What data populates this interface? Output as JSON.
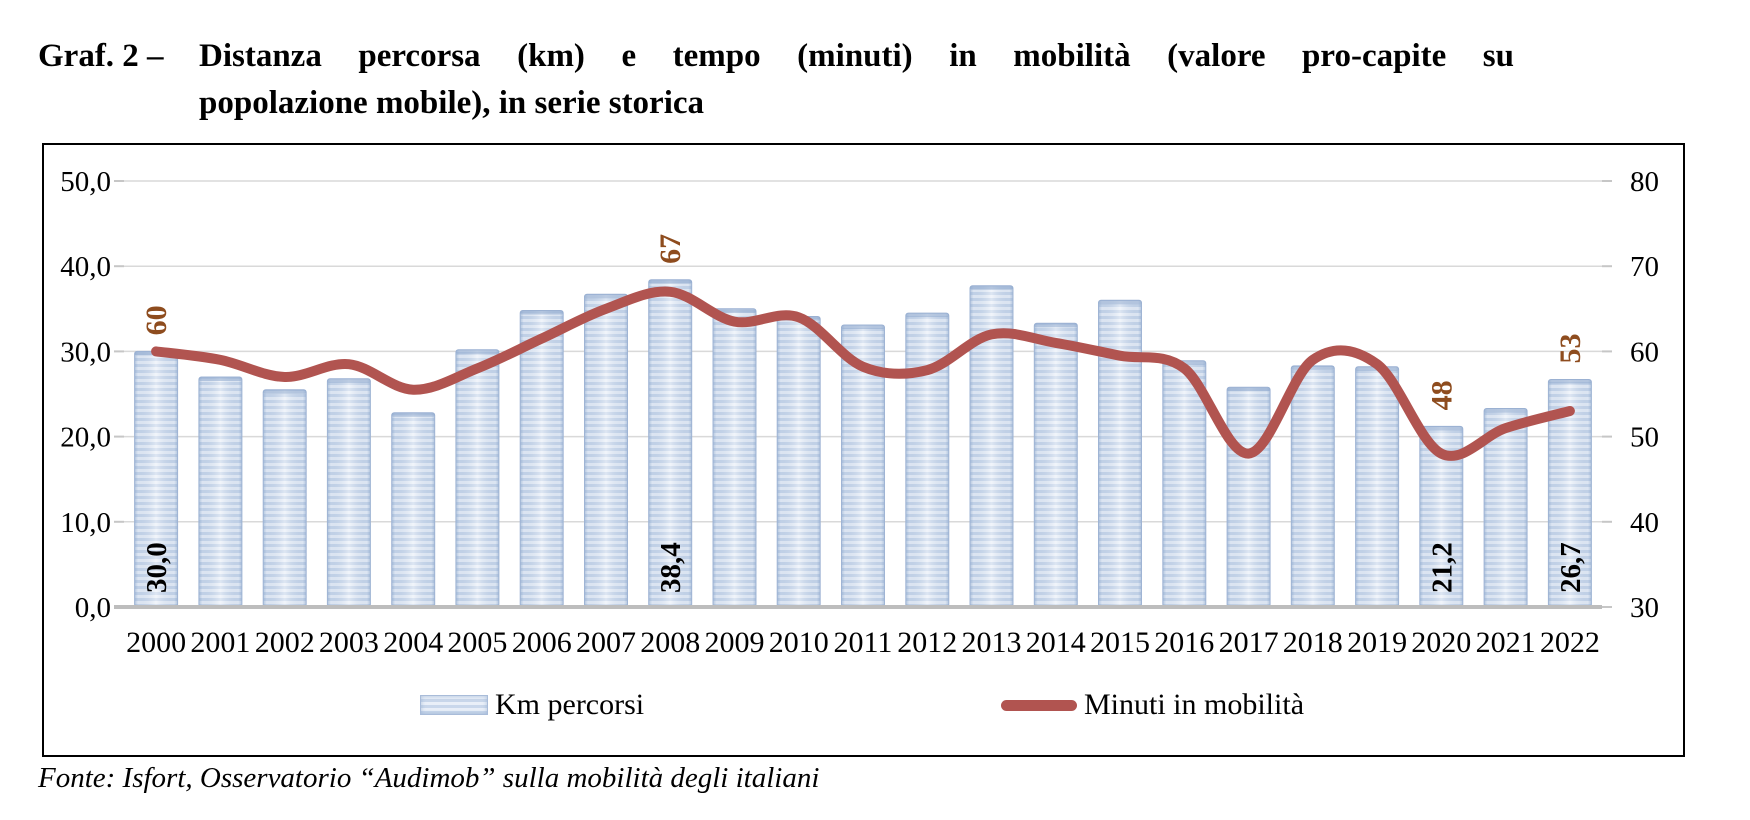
{
  "title": {
    "prefix": "Graf. 2 –",
    "line1": "Distanza percorsa (km) e tempo (minuti) in mobilità (valore pro-capite su",
    "line2": "popolazione mobile), in serie storica",
    "full": "Graf. 2 – Distanza percorsa (km) e tempo (minuti) in mobilità (valore pro-capite su popolazione mobile), in serie storica"
  },
  "source_note": "Fonte: Isfort, Osservatorio “Audimob” sulla mobilità degli italiani",
  "legend": {
    "km": "Km percorsi",
    "minuti": "Minuti in mobilità"
  },
  "colors": {
    "bar_stripe_light": "#e9eff8",
    "bar_stripe_dark": "#c9d7eb",
    "bar_edge": "#9fb4d4",
    "bar_cap": "#8fa9cd",
    "bar_shade": "#7d9cc4",
    "line": "#b15450",
    "line_label": "#8e4c1e",
    "bar_label": "#000000",
    "grid": "#d9d9d9",
    "baseline": "#bdbdbd",
    "tick": "#c6c6c6",
    "border": "#000000",
    "text": "#000000"
  },
  "chart_data": {
    "type": "bar+line combo",
    "title": "Graf. 2 – Distanza percorsa (km) e tempo (minuti) in mobilità (valore pro-capite su popolazione mobile), in serie storica",
    "categories": [
      "2000",
      "2001",
      "2002",
      "2003",
      "2004",
      "2005",
      "2006",
      "2007",
      "2008",
      "2009",
      "2010",
      "2011",
      "2012",
      "2013",
      "2014",
      "2015",
      "2016",
      "2017",
      "2018",
      "2019",
      "2020",
      "2021",
      "2022"
    ],
    "series": [
      {
        "name": "Km percorsi",
        "type": "bar",
        "axis": "left",
        "values": [
          30.0,
          27.0,
          25.5,
          26.8,
          22.8,
          30.2,
          34.8,
          36.7,
          38.4,
          35.0,
          34.1,
          33.1,
          34.5,
          37.7,
          33.3,
          36.0,
          28.9,
          25.8,
          28.3,
          28.2,
          21.2,
          23.3,
          26.7
        ]
      },
      {
        "name": "Minuti in mobilità",
        "type": "line",
        "axis": "right",
        "values": [
          60,
          59,
          57,
          58.5,
          55.5,
          58,
          61.5,
          65,
          67,
          63.5,
          64,
          58.2,
          57.8,
          62,
          61,
          59.5,
          58,
          48,
          59,
          58.5,
          48,
          51,
          53
        ]
      }
    ],
    "left_axis": {
      "range": [
        0,
        50
      ],
      "ticks": [
        {
          "value": 0,
          "label": "0,0"
        },
        {
          "value": 10,
          "label": "10,0"
        },
        {
          "value": 20,
          "label": "20,0"
        },
        {
          "value": 30,
          "label": "30,0"
        },
        {
          "value": 40,
          "label": "40,0"
        },
        {
          "value": 50,
          "label": "50,0"
        }
      ]
    },
    "right_axis": {
      "range": [
        30,
        80
      ],
      "ticks": [
        {
          "value": 30,
          "label": "30"
        },
        {
          "value": 40,
          "label": "40"
        },
        {
          "value": 50,
          "label": "50"
        },
        {
          "value": 60,
          "label": "60"
        },
        {
          "value": 70,
          "label": "70"
        },
        {
          "value": 80,
          "label": "80"
        }
      ]
    },
    "bar_labels": [
      {
        "index": 0,
        "text": "30,0"
      },
      {
        "index": 8,
        "text": "38,4"
      },
      {
        "index": 20,
        "text": "21,2"
      },
      {
        "index": 22,
        "text": "26,7"
      }
    ],
    "line_labels": [
      {
        "index": 0,
        "text": "60"
      },
      {
        "index": 8,
        "text": "67"
      },
      {
        "index": 20,
        "text": "48"
      },
      {
        "index": 22,
        "text": "53"
      }
    ],
    "grid": "horizontal",
    "legend_position": "bottom-inside",
    "xlabel": "",
    "ylabel_left": "",
    "ylabel_right": ""
  }
}
